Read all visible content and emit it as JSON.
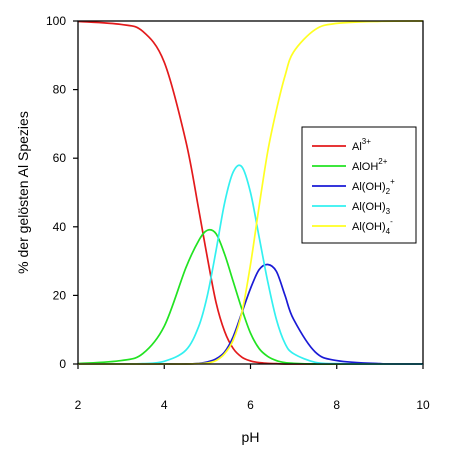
{
  "chart_data": {
    "type": "line",
    "xlabel": "pH",
    "ylabel": "% der gelösten Al Spezies",
    "xlim": [
      2,
      10
    ],
    "ylim": [
      0,
      100
    ],
    "xticks": [
      "2",
      "4",
      "6",
      "8",
      "10"
    ],
    "yticks": [
      "0",
      "20",
      "40",
      "60",
      "80",
      "100"
    ],
    "legend_position": "right",
    "x": [
      2.0,
      3.0,
      3.5,
      4.0,
      4.5,
      4.8,
      5.0,
      5.2,
      5.4,
      5.6,
      5.8,
      6.0,
      6.2,
      6.4,
      6.6,
      6.8,
      7.0,
      7.5,
      8.0,
      9.0,
      10.0
    ],
    "series": [
      {
        "base": "Al",
        "sup": "3+",
        "sub": "",
        "color": "#e31a1c",
        "values": [
          99.9,
          99.0,
          97.0,
          88.0,
          65.0,
          45.0,
          31.0,
          18.0,
          9.5,
          4.5,
          2.0,
          0.9,
          0.4,
          0.2,
          0.1,
          0.0,
          0.0,
          0.0,
          0.0,
          0.0,
          0.0
        ]
      },
      {
        "base": "AlOH",
        "sup": "2+",
        "sub": "",
        "color": "#22e322",
        "values": [
          0.1,
          1.0,
          3.0,
          11.0,
          28.0,
          36.0,
          39.0,
          38.0,
          32.0,
          24.0,
          16.0,
          9.0,
          4.5,
          2.2,
          1.0,
          0.4,
          0.2,
          0.0,
          0.0,
          0.0,
          0.0
        ]
      },
      {
        "base": "Al(OH)",
        "sup": "+",
        "sub": "2",
        "color": "#1a1ad6",
        "values": [
          0.0,
          0.0,
          0.0,
          0.0,
          0.0,
          0.2,
          0.6,
          1.5,
          3.5,
          8.0,
          15.0,
          22.0,
          27.5,
          29.0,
          27.0,
          20.0,
          13.0,
          3.5,
          1.0,
          0.1,
          0.0
        ]
      },
      {
        "base": "Al(OH)",
        "sup": "",
        "sub": "3",
        "color": "#33f0f0",
        "values": [
          0.0,
          0.0,
          0.1,
          0.8,
          4.0,
          11.0,
          20.0,
          33.0,
          47.0,
          56.0,
          57.5,
          50.0,
          37.0,
          24.0,
          13.0,
          6.0,
          3.0,
          0.5,
          0.1,
          0.0,
          0.0
        ]
      },
      {
        "base": "Al(OH)",
        "sup": "-",
        "sub": "4",
        "color": "#ffff22",
        "values": [
          0.0,
          0.0,
          0.0,
          0.0,
          0.0,
          0.1,
          0.3,
          1.0,
          3.0,
          7.0,
          15.0,
          29.0,
          46.0,
          62.0,
          74.0,
          84.0,
          91.0,
          97.5,
          99.3,
          99.9,
          100.0
        ]
      }
    ]
  }
}
